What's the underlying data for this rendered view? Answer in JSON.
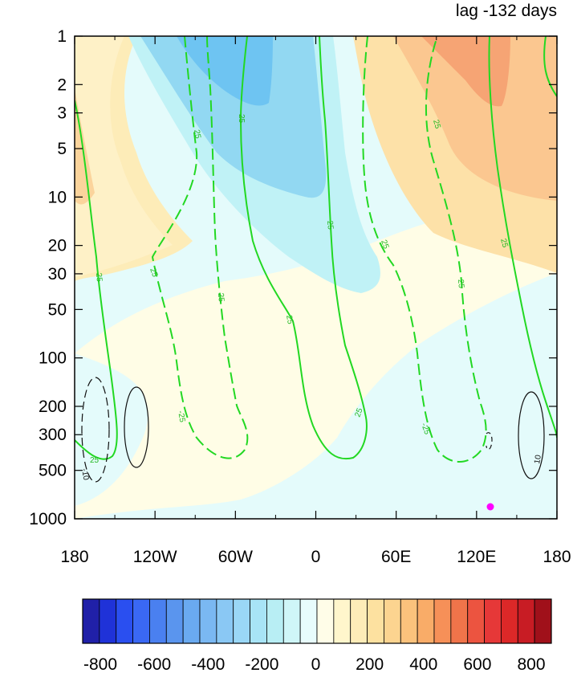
{
  "chart_data": {
    "type": "heatmap",
    "title": "lag -132 days",
    "x_ticks": [
      "180",
      "120W",
      "60W",
      "0",
      "60E",
      "120E",
      "180"
    ],
    "y_ticks": [
      "1",
      "2",
      "3",
      "5",
      "10",
      "20",
      "30",
      "50",
      "100",
      "200",
      "300",
      "500",
      "1000"
    ],
    "y_scale": "log",
    "y_reversed": true,
    "xlim": [
      -180,
      180
    ],
    "ylim": [
      1000,
      1
    ],
    "colorbar": {
      "labels": [
        "-800",
        "-600",
        "-400",
        "-200",
        "0",
        "200",
        "400",
        "600",
        "800"
      ],
      "range": [
        -800,
        800
      ],
      "colors": [
        "#2020a8",
        "#1f32d8",
        "#2a4ff0",
        "#3a68f4",
        "#4a80f0",
        "#5a95ee",
        "#6aaaf0",
        "#7ab8f2",
        "#8ac8f4",
        "#9ad7f6",
        "#a8e4f6",
        "#b8eef4",
        "#cff6f8",
        "#e8fcfc",
        "#fffde8",
        "#fff6cc",
        "#fdecb8",
        "#fde1a0",
        "#fcd490",
        "#fbc27c",
        "#f9ac68",
        "#f69058",
        "#f0744a",
        "#ec5440",
        "#e63838",
        "#dc2828",
        "#c81c24",
        "#a0101a"
      ]
    },
    "contour_labels": [
      "25",
      "-25",
      "-10",
      "10"
    ],
    "marker": {
      "lon": 130,
      "pressure": 850,
      "color": "#ff00ff"
    }
  }
}
